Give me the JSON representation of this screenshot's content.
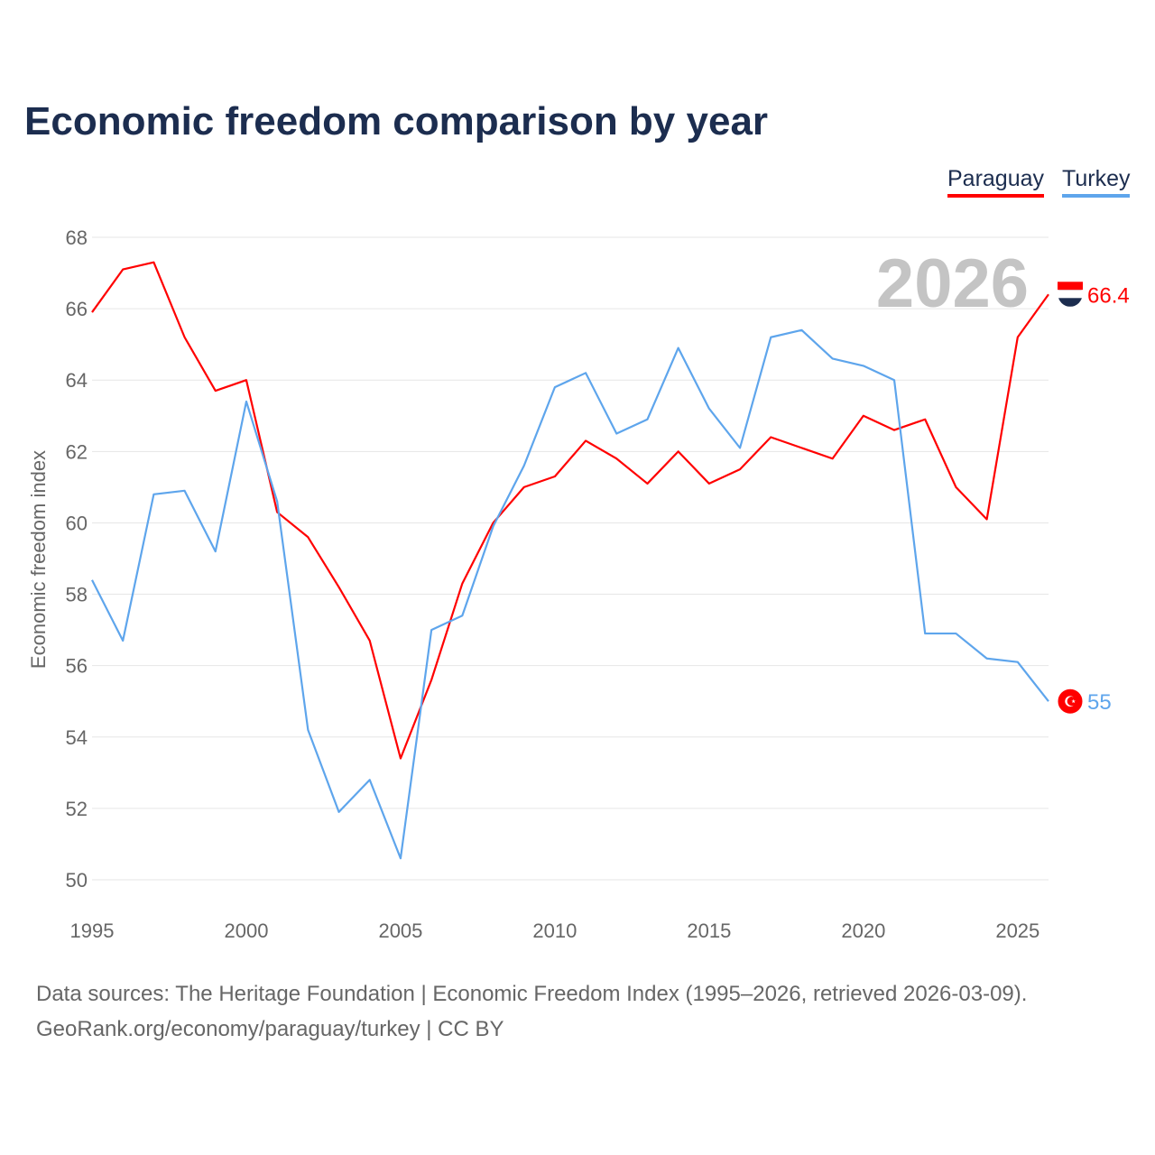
{
  "title": "Economic freedom comparison by year",
  "sources": [
    "Data sources: The Heritage Foundation | Economic Freedom Index (1995–2026, retrieved 2026-03-09).",
    "GeoRank.org/economy/paraguay/turkey | CC BY"
  ],
  "chart_data": {
    "type": "line",
    "title": "Economic freedom comparison by year",
    "xlabel": "",
    "ylabel": "Economic freedom index",
    "watermark_year": "2026",
    "x": [
      1995,
      1996,
      1997,
      1998,
      1999,
      2000,
      2001,
      2002,
      2003,
      2004,
      2005,
      2006,
      2007,
      2008,
      2009,
      2010,
      2011,
      2012,
      2013,
      2014,
      2015,
      2016,
      2017,
      2018,
      2019,
      2020,
      2021,
      2022,
      2023,
      2024,
      2025,
      2026
    ],
    "xlim": [
      1995,
      2026
    ],
    "ylim": [
      50,
      68
    ],
    "xticks": [
      1995,
      2000,
      2005,
      2010,
      2015,
      2020,
      2025
    ],
    "yticks": [
      50,
      52,
      54,
      56,
      58,
      60,
      62,
      64,
      66,
      68
    ],
    "grid": true,
    "legend_position": "top-right",
    "series": [
      {
        "name": "Paraguay",
        "color": "#ff0000",
        "end_label": "66.4",
        "values": [
          65.9,
          67.1,
          67.3,
          65.2,
          63.7,
          64.0,
          60.3,
          59.6,
          58.2,
          56.7,
          53.4,
          55.6,
          58.3,
          60.0,
          61.0,
          61.3,
          62.3,
          61.8,
          61.1,
          62.0,
          61.1,
          61.5,
          62.4,
          62.1,
          61.8,
          63.0,
          62.6,
          62.9,
          61.0,
          60.1,
          65.2,
          66.4
        ]
      },
      {
        "name": "Turkey",
        "color": "#5ea5ec",
        "end_label": "55",
        "values": [
          58.4,
          56.7,
          60.8,
          60.9,
          59.2,
          63.4,
          60.6,
          54.2,
          51.9,
          52.8,
          50.6,
          57.0,
          57.4,
          59.9,
          61.6,
          63.8,
          64.2,
          62.5,
          62.9,
          64.9,
          63.2,
          62.1,
          65.2,
          65.4,
          64.6,
          64.4,
          64.0,
          56.9,
          56.9,
          56.2,
          56.1,
          55.0
        ]
      }
    ]
  }
}
